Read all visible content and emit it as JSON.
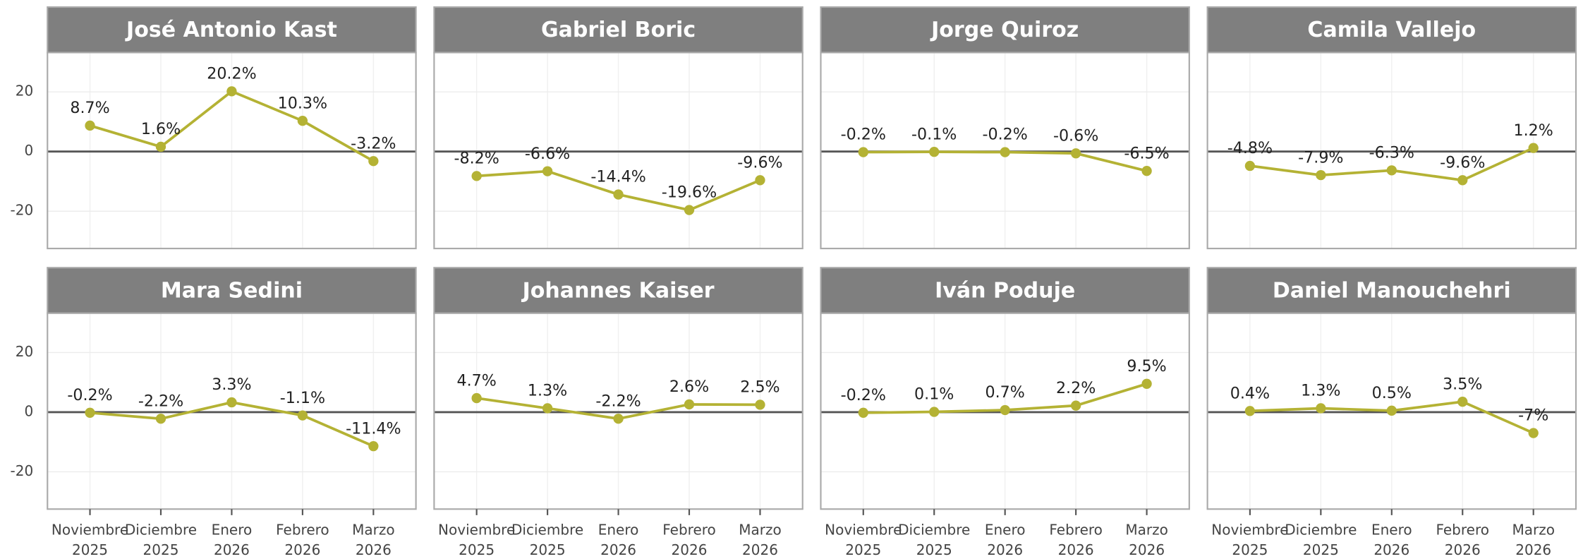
{
  "chart_data": [
    {
      "type": "line",
      "title": "José Antonio Kast",
      "categories": [
        "Noviembre 2025",
        "Diciembre 2025",
        "Enero 2026",
        "Febrero 2026",
        "Marzo 2026"
      ],
      "values": [
        8.7,
        1.6,
        20.2,
        10.3,
        -3.2
      ],
      "value_labels": [
        "8.7%",
        "1.6%",
        "20.2%",
        "10.3%",
        "-3.2%"
      ],
      "color": "#b4b234",
      "ylim": [
        -32.5,
        33.2
      ],
      "yticks": [
        -20,
        0,
        20
      ]
    },
    {
      "type": "line",
      "title": "Gabriel Boric",
      "categories": [
        "Noviembre 2025",
        "Diciembre 2025",
        "Enero 2026",
        "Febrero 2026",
        "Marzo 2026"
      ],
      "values": [
        -8.2,
        -6.6,
        -14.4,
        -19.6,
        -9.6
      ],
      "value_labels": [
        "-8.2%",
        "-6.6%",
        "-14.4%",
        "-19.6%",
        "-9.6%"
      ],
      "color": "#b4b234",
      "ylim": [
        -32.5,
        33.2
      ],
      "yticks": [
        -20,
        0,
        20
      ]
    },
    {
      "type": "line",
      "title": "Jorge Quiroz",
      "categories": [
        "Noviembre 2025",
        "Diciembre 2025",
        "Enero 2026",
        "Febrero 2026",
        "Marzo 2026"
      ],
      "values": [
        -0.2,
        -0.1,
        -0.2,
        -0.6,
        -6.5
      ],
      "value_labels": [
        "-0.2%",
        "-0.1%",
        "-0.2%",
        "-0.6%",
        "-6.5%"
      ],
      "color": "#b4b234",
      "ylim": [
        -32.5,
        33.2
      ],
      "yticks": [
        -20,
        0,
        20
      ]
    },
    {
      "type": "line",
      "title": "Camila Vallejo",
      "categories": [
        "Noviembre 2025",
        "Diciembre 2025",
        "Enero 2026",
        "Febrero 2026",
        "Marzo 2026"
      ],
      "values": [
        -4.8,
        -7.9,
        -6.3,
        -9.6,
        1.2
      ],
      "value_labels": [
        "-4.8%",
        "-7.9%",
        "-6.3%",
        "-9.6%",
        "1.2%"
      ],
      "color": "#b4b234",
      "ylim": [
        -32.5,
        33.2
      ],
      "yticks": [
        -20,
        0,
        20
      ]
    },
    {
      "type": "line",
      "title": "Mara Sedini",
      "categories": [
        "Noviembre 2025",
        "Diciembre 2025",
        "Enero 2026",
        "Febrero 2026",
        "Marzo 2026"
      ],
      "values": [
        -0.2,
        -2.2,
        3.3,
        -1.1,
        -11.4
      ],
      "value_labels": [
        "-0.2%",
        "-2.2%",
        "3.3%",
        "-1.1%",
        "-11.4%"
      ],
      "color": "#b4b234",
      "ylim": [
        -32.5,
        33.2
      ],
      "yticks": [
        -20,
        0,
        20
      ]
    },
    {
      "type": "line",
      "title": "Johannes Kaiser",
      "categories": [
        "Noviembre 2025",
        "Diciembre 2025",
        "Enero 2026",
        "Febrero 2026",
        "Marzo 2026"
      ],
      "values": [
        4.7,
        1.3,
        -2.2,
        2.6,
        2.5
      ],
      "value_labels": [
        "4.7%",
        "1.3%",
        "-2.2%",
        "2.6%",
        "2.5%"
      ],
      "color": "#b4b234",
      "ylim": [
        -32.5,
        33.2
      ],
      "yticks": [
        -20,
        0,
        20
      ]
    },
    {
      "type": "line",
      "title": "Iván Poduje",
      "categories": [
        "Noviembre 2025",
        "Diciembre 2025",
        "Enero 2026",
        "Febrero 2026",
        "Marzo 2026"
      ],
      "values": [
        -0.2,
        0.1,
        0.7,
        2.2,
        9.5
      ],
      "value_labels": [
        "-0.2%",
        "0.1%",
        "0.7%",
        "2.2%",
        "9.5%"
      ],
      "color": "#b4b234",
      "ylim": [
        -32.5,
        33.2
      ],
      "yticks": [
        -20,
        0,
        20
      ]
    },
    {
      "type": "line",
      "title": "Daniel Manouchehri",
      "categories": [
        "Noviembre 2025",
        "Diciembre 2025",
        "Enero 2026",
        "Febrero 2026",
        "Marzo 2026"
      ],
      "values": [
        0.4,
        1.3,
        0.5,
        3.5,
        -7
      ],
      "value_labels": [
        "0.4%",
        "1.3%",
        "0.5%",
        "3.5%",
        "-7%"
      ],
      "color": "#b4b234",
      "ylim": [
        -32.5,
        33.2
      ],
      "yticks": [
        -20,
        0,
        20
      ]
    }
  ]
}
